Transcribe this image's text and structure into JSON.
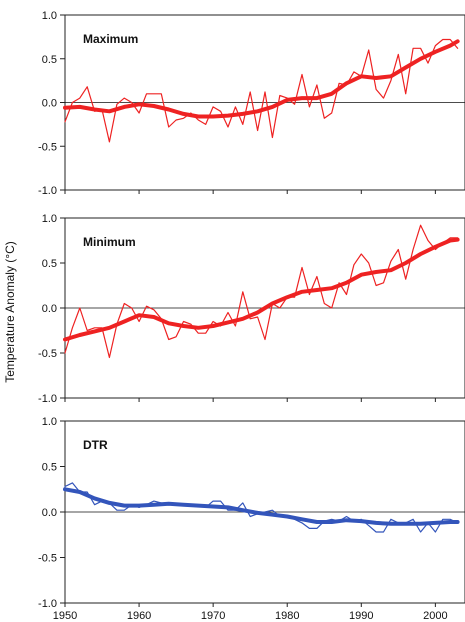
{
  "figure": {
    "ylabel": "Temperature Anomaly (°C)",
    "x_ticks": [
      1950,
      1960,
      1970,
      1980,
      1990,
      2000
    ],
    "x_range": [
      1950,
      2004
    ]
  },
  "chart_data": [
    {
      "type": "line",
      "title": "Maximum",
      "xlim": [
        1950,
        2004
      ],
      "ylim": [
        -1.0,
        1.0
      ],
      "yticks": [
        "1.0",
        "0.5",
        "0.0",
        "-0.5",
        "-1.0"
      ],
      "ytick_values": [
        1.0,
        0.5,
        0.0,
        -0.5,
        -1.0
      ],
      "zero_line": true,
      "series": [
        {
          "role": "annual",
          "color": "#ee2222",
          "x": [
            1950,
            1951,
            1952,
            1953,
            1954,
            1955,
            1956,
            1957,
            1958,
            1959,
            1960,
            1961,
            1962,
            1963,
            1964,
            1965,
            1966,
            1967,
            1968,
            1969,
            1970,
            1971,
            1972,
            1973,
            1974,
            1975,
            1976,
            1977,
            1978,
            1979,
            1980,
            1981,
            1982,
            1983,
            1984,
            1985,
            1986,
            1987,
            1988,
            1989,
            1990,
            1991,
            1992,
            1993,
            1994,
            1995,
            1996,
            1997,
            1998,
            1999,
            2000,
            2001,
            2002,
            2003
          ],
          "y": [
            -0.22,
            0.0,
            0.05,
            0.18,
            -0.1,
            -0.08,
            -0.45,
            -0.02,
            0.05,
            0.0,
            -0.12,
            0.1,
            0.1,
            0.1,
            -0.28,
            -0.2,
            -0.18,
            -0.12,
            -0.2,
            -0.25,
            -0.05,
            -0.1,
            -0.28,
            -0.05,
            -0.25,
            0.12,
            -0.32,
            0.12,
            -0.4,
            0.08,
            0.05,
            -0.02,
            0.32,
            -0.05,
            0.2,
            -0.18,
            -0.12,
            0.22,
            0.2,
            0.35,
            0.3,
            0.6,
            0.15,
            0.05,
            0.25,
            0.55,
            0.1,
            0.62,
            0.62,
            0.45,
            0.65,
            0.72,
            0.72,
            0.62
          ]
        },
        {
          "role": "smoothed",
          "color": "#ee2222",
          "x": [
            1950,
            1952,
            1954,
            1956,
            1958,
            1960,
            1962,
            1964,
            1966,
            1968,
            1970,
            1972,
            1974,
            1976,
            1978,
            1980,
            1982,
            1984,
            1986,
            1988,
            1990,
            1992,
            1994,
            1996,
            1998,
            2000,
            2002,
            2003
          ],
          "y": [
            -0.06,
            -0.05,
            -0.08,
            -0.1,
            -0.05,
            -0.02,
            -0.04,
            -0.08,
            -0.13,
            -0.16,
            -0.16,
            -0.15,
            -0.13,
            -0.1,
            -0.05,
            0.03,
            0.05,
            0.05,
            0.1,
            0.22,
            0.3,
            0.28,
            0.3,
            0.4,
            0.5,
            0.58,
            0.65,
            0.7
          ]
        }
      ]
    },
    {
      "type": "line",
      "title": "Minimum",
      "xlim": [
        1950,
        2004
      ],
      "ylim": [
        -1.0,
        1.0
      ],
      "yticks": [
        "1.0",
        "0.5",
        "0.0",
        "-0.5",
        "-1.0"
      ],
      "ytick_values": [
        1.0,
        0.5,
        0.0,
        -0.5,
        -1.0
      ],
      "zero_line": true,
      "series": [
        {
          "role": "annual",
          "color": "#ee2222",
          "x": [
            1950,
            1951,
            1952,
            1953,
            1954,
            1955,
            1956,
            1957,
            1958,
            1959,
            1960,
            1961,
            1962,
            1963,
            1964,
            1965,
            1966,
            1967,
            1968,
            1969,
            1970,
            1971,
            1972,
            1973,
            1974,
            1975,
            1976,
            1977,
            1978,
            1979,
            1980,
            1981,
            1982,
            1983,
            1984,
            1985,
            1986,
            1987,
            1988,
            1989,
            1990,
            1991,
            1992,
            1993,
            1994,
            1995,
            1996,
            1997,
            1998,
            1999,
            2000,
            2001,
            2002,
            2003
          ],
          "y": [
            -0.5,
            -0.22,
            0.0,
            -0.25,
            -0.22,
            -0.22,
            -0.55,
            -0.18,
            0.05,
            0.0,
            -0.15,
            0.02,
            -0.02,
            -0.12,
            -0.35,
            -0.32,
            -0.15,
            -0.18,
            -0.28,
            -0.28,
            -0.15,
            -0.2,
            -0.05,
            -0.2,
            0.18,
            -0.12,
            -0.1,
            -0.35,
            0.05,
            0.0,
            0.12,
            0.12,
            0.45,
            0.15,
            0.35,
            0.05,
            0.0,
            0.28,
            0.15,
            0.48,
            0.6,
            0.5,
            0.25,
            0.28,
            0.52,
            0.65,
            0.32,
            0.65,
            0.92,
            0.75,
            0.65,
            0.72,
            0.78,
            0.78
          ]
        },
        {
          "role": "smoothed",
          "color": "#ee2222",
          "x": [
            1950,
            1952,
            1954,
            1956,
            1958,
            1960,
            1962,
            1964,
            1966,
            1968,
            1970,
            1972,
            1974,
            1976,
            1978,
            1980,
            1982,
            1984,
            1986,
            1988,
            1990,
            1992,
            1994,
            1996,
            1998,
            2000,
            2002,
            2003
          ],
          "y": [
            -0.35,
            -0.3,
            -0.26,
            -0.22,
            -0.15,
            -0.08,
            -0.1,
            -0.17,
            -0.2,
            -0.22,
            -0.2,
            -0.16,
            -0.12,
            -0.05,
            0.05,
            0.12,
            0.18,
            0.2,
            0.22,
            0.28,
            0.37,
            0.4,
            0.42,
            0.5,
            0.6,
            0.68,
            0.75,
            0.76
          ]
        }
      ]
    },
    {
      "type": "line",
      "title": "DTR",
      "xlim": [
        1950,
        2004
      ],
      "ylim": [
        -1.0,
        1.0
      ],
      "yticks": [
        "1.0",
        "0.5",
        "0.0",
        "-0.5",
        "-1.0"
      ],
      "ytick_values": [
        1.0,
        0.5,
        0.0,
        -0.5,
        -1.0
      ],
      "zero_line": true,
      "series": [
        {
          "role": "annual",
          "color": "#3355bb",
          "x": [
            1950,
            1951,
            1952,
            1953,
            1954,
            1955,
            1956,
            1957,
            1958,
            1959,
            1960,
            1961,
            1962,
            1963,
            1964,
            1965,
            1966,
            1967,
            1968,
            1969,
            1970,
            1971,
            1972,
            1973,
            1974,
            1975,
            1976,
            1977,
            1978,
            1979,
            1980,
            1981,
            1982,
            1983,
            1984,
            1985,
            1986,
            1987,
            1988,
            1989,
            1990,
            1991,
            1992,
            1993,
            1994,
            1995,
            1996,
            1997,
            1998,
            1999,
            2000,
            2001,
            2002,
            2003
          ],
          "y": [
            0.28,
            0.32,
            0.22,
            0.22,
            0.08,
            0.12,
            0.1,
            0.02,
            0.02,
            0.08,
            0.05,
            0.08,
            0.12,
            0.1,
            0.08,
            0.08,
            0.08,
            0.08,
            0.08,
            0.05,
            0.12,
            0.12,
            0.02,
            0.02,
            0.1,
            -0.05,
            -0.02,
            0.0,
            0.02,
            -0.05,
            -0.05,
            -0.08,
            -0.12,
            -0.18,
            -0.18,
            -0.1,
            -0.08,
            -0.1,
            -0.05,
            -0.1,
            -0.08,
            -0.15,
            -0.22,
            -0.22,
            -0.08,
            -0.12,
            -0.12,
            -0.08,
            -0.22,
            -0.12,
            -0.22,
            -0.08,
            -0.08,
            -0.12
          ]
        },
        {
          "role": "smoothed",
          "color": "#3355bb",
          "x": [
            1950,
            1952,
            1954,
            1956,
            1958,
            1960,
            1962,
            1964,
            1966,
            1968,
            1970,
            1972,
            1974,
            1976,
            1978,
            1980,
            1982,
            1984,
            1986,
            1988,
            1990,
            1992,
            1994,
            1996,
            1998,
            2000,
            2002,
            2003
          ],
          "y": [
            0.25,
            0.22,
            0.15,
            0.1,
            0.07,
            0.07,
            0.08,
            0.09,
            0.08,
            0.07,
            0.06,
            0.05,
            0.02,
            -0.01,
            -0.03,
            -0.05,
            -0.08,
            -0.11,
            -0.11,
            -0.09,
            -0.1,
            -0.12,
            -0.13,
            -0.13,
            -0.13,
            -0.12,
            -0.11,
            -0.11
          ]
        }
      ]
    }
  ]
}
